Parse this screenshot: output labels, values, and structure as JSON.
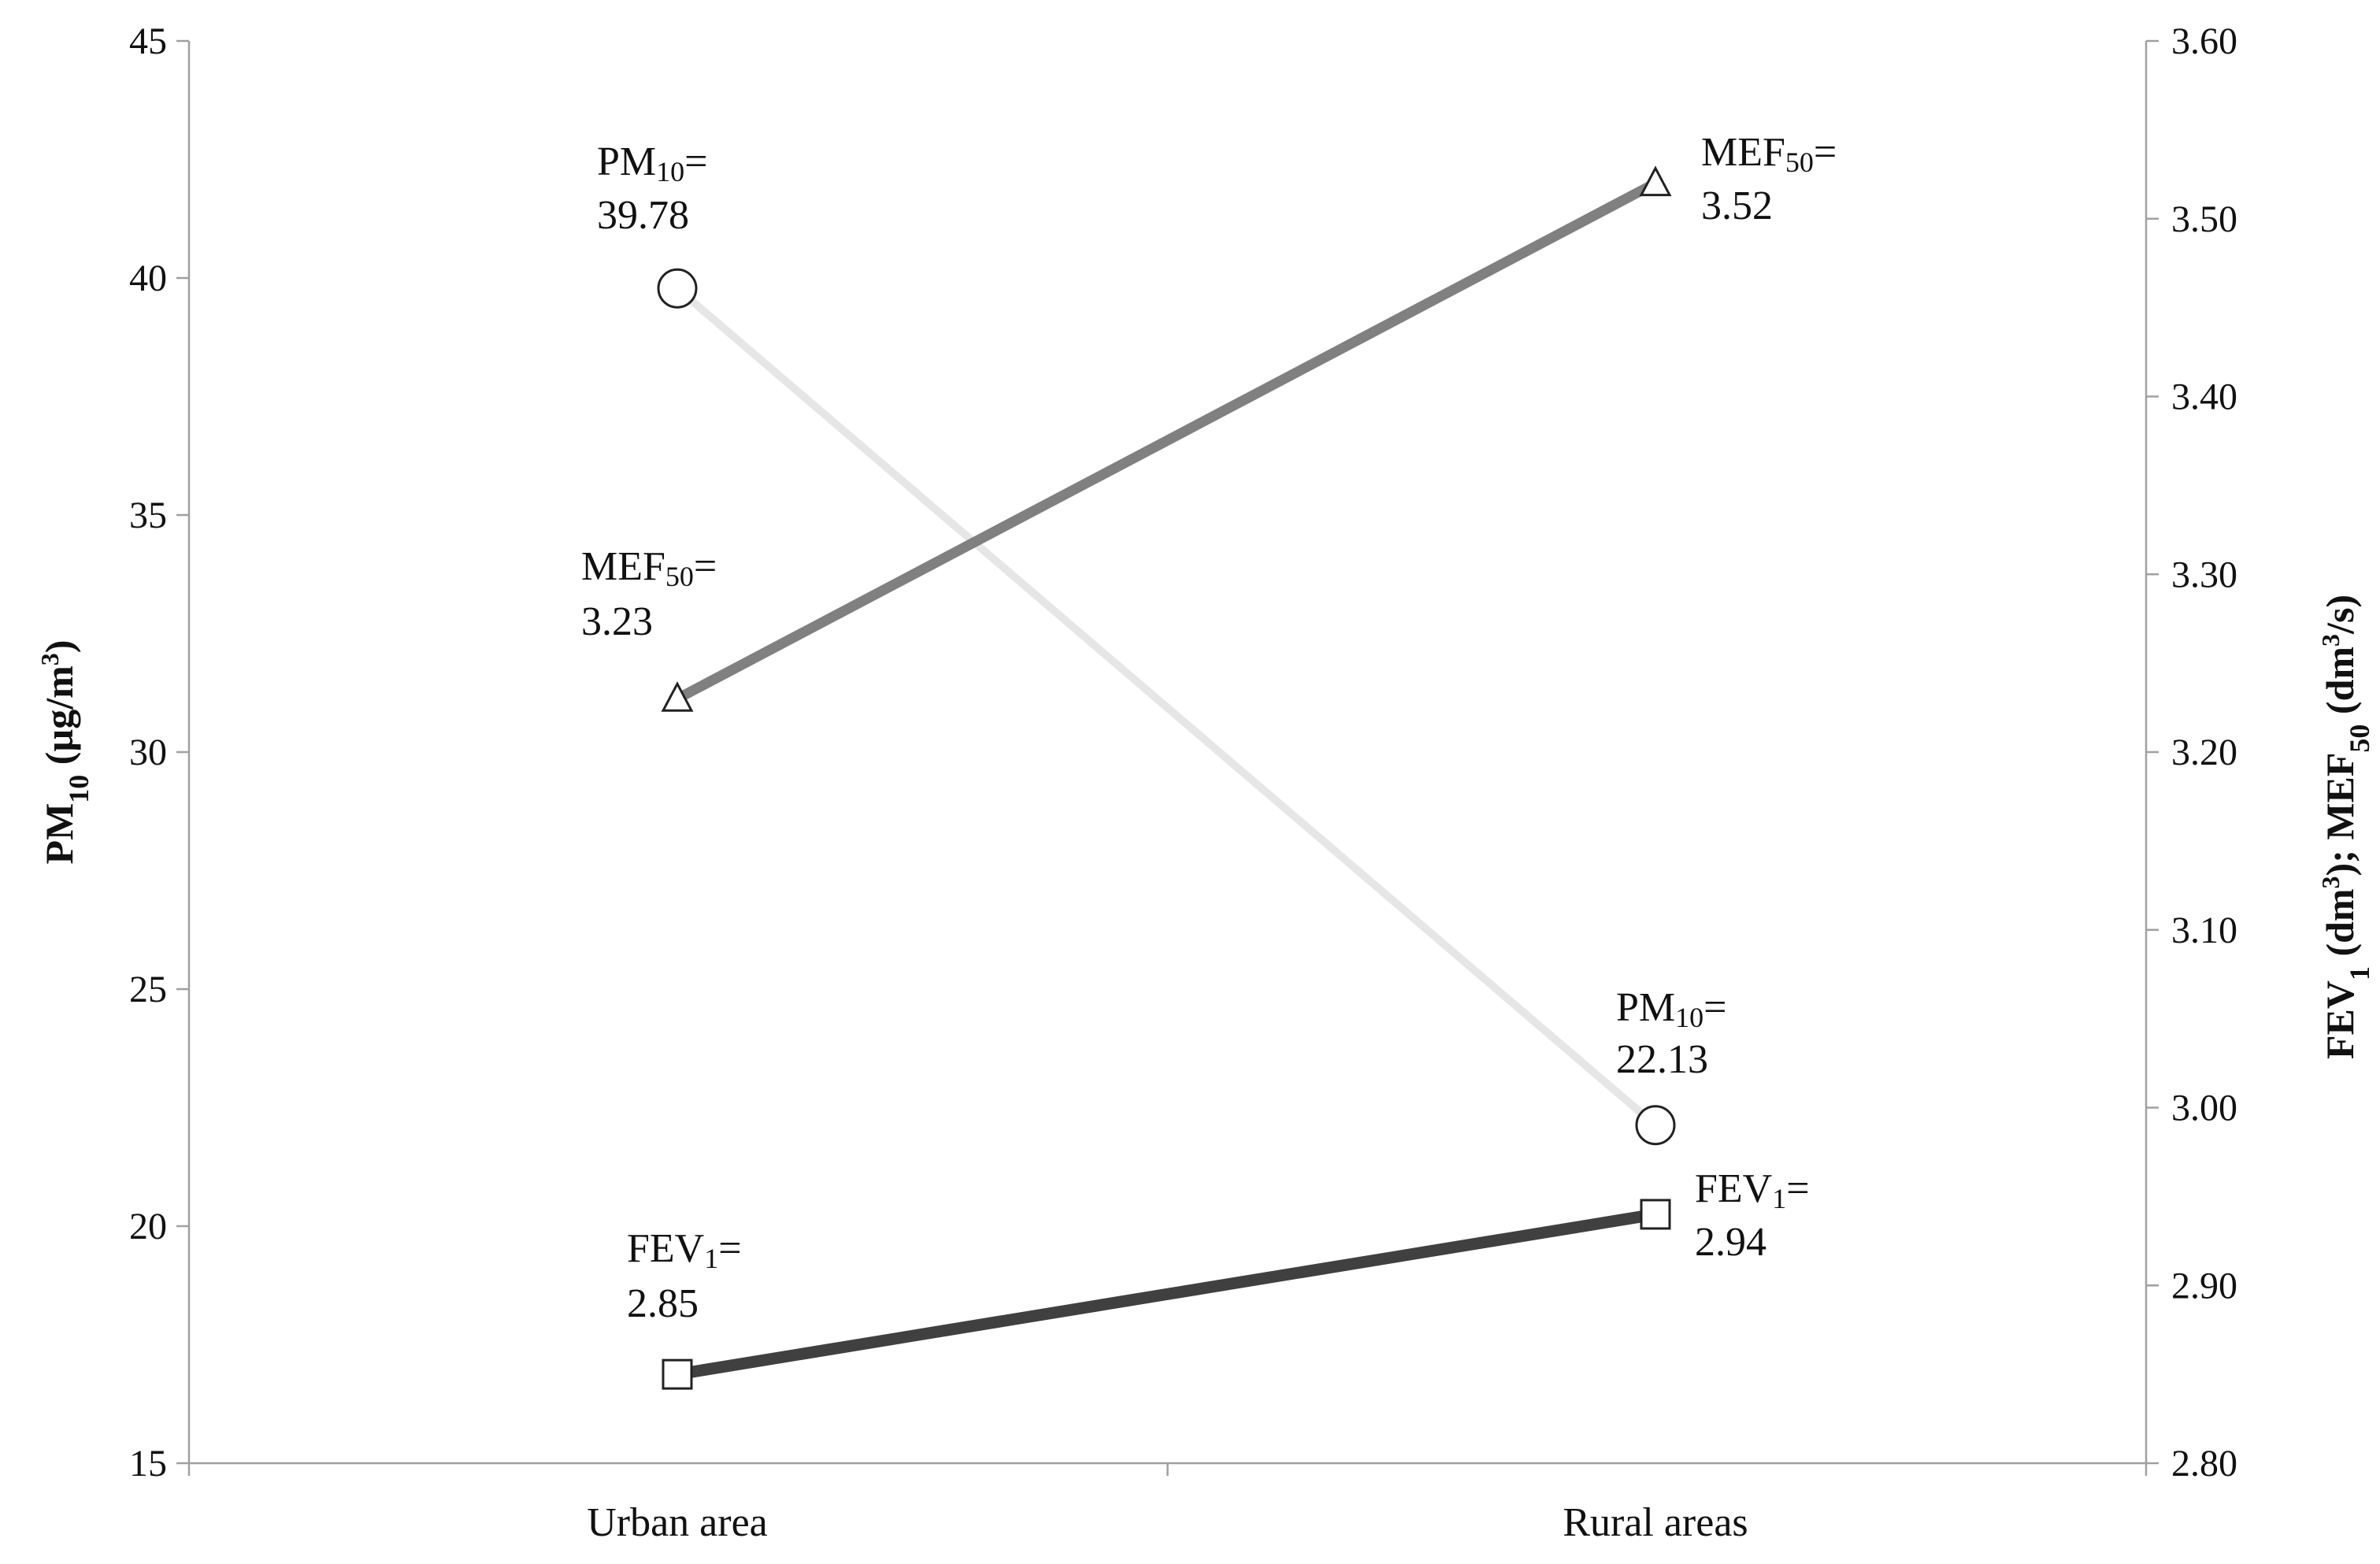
{
  "chart_data": {
    "type": "line",
    "categories": [
      "Urban area",
      "Rural areas"
    ],
    "y_left": {
      "label_main": "PM",
      "label_sub": "10",
      "label_rest": " (µg/m",
      "label_sup": "3",
      "label_end": ")",
      "range": [
        15,
        45
      ],
      "ticks": [
        "15",
        "20",
        "25",
        "30",
        "35",
        "40",
        "45"
      ]
    },
    "y_right": {
      "label_parts": [
        {
          "t": "FEV",
          "k": "n"
        },
        {
          "t": "1",
          "k": "sub"
        },
        {
          "t": " (dm",
          "k": "n"
        },
        {
          "t": "3",
          "k": "sup"
        },
        {
          "t": ");  MEF",
          "k": "n"
        },
        {
          "t": "50",
          "k": "sub"
        },
        {
          "t": " (dm",
          "k": "n"
        },
        {
          "t": "3",
          "k": "sup"
        },
        {
          "t": "/s)",
          "k": "n"
        }
      ],
      "range": [
        2.8,
        3.6
      ],
      "ticks": [
        "2.80",
        "2.90",
        "3.00",
        "3.10",
        "3.20",
        "3.30",
        "3.40",
        "3.50",
        "3.60"
      ]
    },
    "series": [
      {
        "axis": "left",
        "marker": "circle",
        "color": "#e6e6e6",
        "values": [
          39.78,
          22.13
        ],
        "annotations": [
          {
            "main": "PM",
            "sub": "10",
            "eq": "=",
            "value": "39.78"
          },
          {
            "main": "PM",
            "sub": "10",
            "eq": "=",
            "value": "22.13"
          }
        ]
      },
      {
        "axis": "right",
        "marker": "triangle",
        "color": "#808080",
        "values": [
          3.23,
          3.52
        ],
        "annotations": [
          {
            "main": "MEF",
            "sub": "50",
            "eq": "=",
            "value": "3.23"
          },
          {
            "main": "MEF",
            "sub": "50",
            "eq": "=",
            "value": "3.52"
          }
        ]
      },
      {
        "axis": "right",
        "marker": "square",
        "color": "#404040",
        "values": [
          2.85,
          2.94
        ],
        "annotations": [
          {
            "main": "FEV",
            "sub": "1",
            "eq": "=",
            "value": "2.85"
          },
          {
            "main": "FEV",
            "sub": "1",
            "eq": "=",
            "value": "2.94"
          }
        ]
      }
    ],
    "grid": false,
    "legend": "none"
  }
}
